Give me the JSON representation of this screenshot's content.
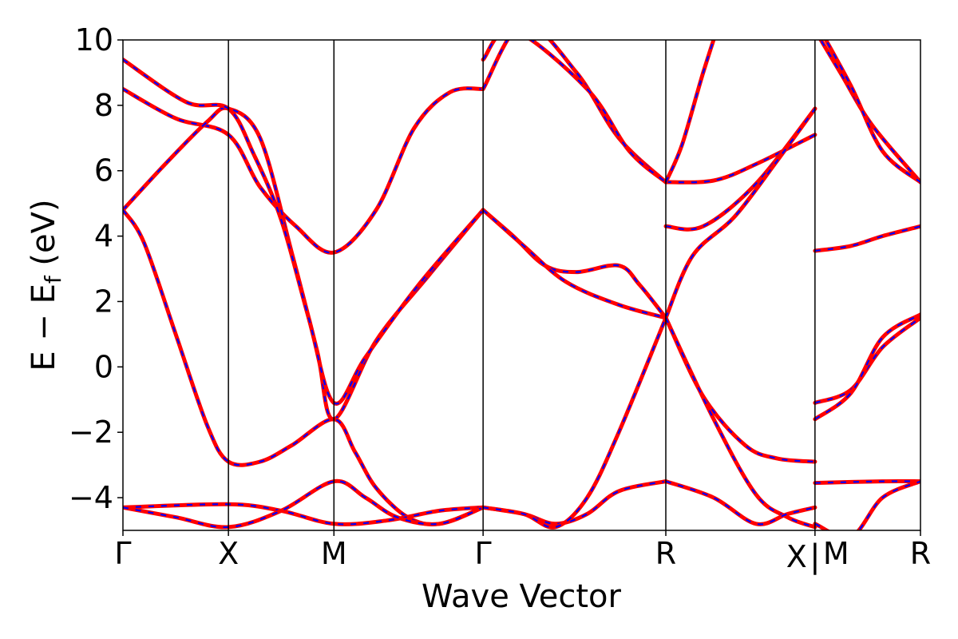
{
  "chart_data": {
    "type": "line",
    "title": "",
    "xlabel": "Wave Vector",
    "ylabel_main": "E − E",
    "ylabel_sub": "f",
    "ylabel_unit": " (eV)",
    "ylim": [
      -5,
      10
    ],
    "yticks": [
      {
        "value": 10,
        "label": "10"
      },
      {
        "value": 8,
        "label": "8"
      },
      {
        "value": 6,
        "label": "6"
      },
      {
        "value": 4,
        "label": "4"
      },
      {
        "value": 2,
        "label": "2"
      },
      {
        "value": 0,
        "label": "0"
      },
      {
        "value": -2,
        "label": "−2"
      },
      {
        "value": -4,
        "label": "−4"
      }
    ],
    "kpoints": [
      {
        "label": "Γ",
        "x": 0
      },
      {
        "label": "X",
        "x": 0.5
      },
      {
        "label": "M",
        "x": 1.0
      },
      {
        "label": "Γ",
        "x": 1.707
      },
      {
        "label": "R",
        "x": 2.573
      },
      {
        "label": "X",
        "x": 3.28
      },
      {
        "label": "M",
        "x": 3.28
      },
      {
        "label": "R",
        "x": 3.78
      }
    ],
    "path_break_label": "|",
    "grid": false,
    "legend": "none",
    "colors": {
      "solid": "#ff0000",
      "dashed": "#0000ff",
      "frame": "#000000"
    },
    "series": [
      {
        "points": [
          [
            0,
            8.5
          ],
          [
            0.25,
            7.6
          ],
          [
            0.5,
            7.1
          ],
          [
            0.65,
            5.5
          ],
          [
            0.82,
            4.3
          ],
          [
            1.0,
            3.5
          ],
          [
            1.2,
            4.8
          ],
          [
            1.38,
            7.3
          ],
          [
            1.55,
            8.4
          ],
          [
            1.707,
            8.5
          ]
        ]
      },
      {
        "points": [
          [
            0,
            4.8
          ],
          [
            0.2,
            6.2
          ],
          [
            0.4,
            7.5
          ],
          [
            0.5,
            7.9
          ],
          [
            0.65,
            7.0
          ],
          [
            0.8,
            3.5
          ],
          [
            0.92,
            0.5
          ],
          [
            1.0,
            -1.6
          ],
          [
            1.2,
            0.8
          ],
          [
            1.45,
            2.8
          ],
          [
            1.707,
            4.8
          ]
        ]
      },
      {
        "points": [
          [
            0,
            4.8
          ],
          [
            0.1,
            3.8
          ],
          [
            0.25,
            1.0
          ],
          [
            0.4,
            -1.8
          ],
          [
            0.5,
            -2.9
          ],
          [
            0.65,
            -2.9
          ],
          [
            0.8,
            -2.4
          ],
          [
            1.0,
            -1.6
          ],
          [
            1.1,
            -2.6
          ],
          [
            1.2,
            -3.7
          ],
          [
            1.35,
            -4.6
          ],
          [
            1.5,
            -4.8
          ],
          [
            1.707,
            -4.3
          ]
        ]
      },
      {
        "points": [
          [
            0,
            9.4
          ],
          [
            0.3,
            8.1
          ],
          [
            0.5,
            7.9
          ],
          [
            0.62,
            6.5
          ],
          [
            0.75,
            4.5
          ],
          [
            0.88,
            1.5
          ],
          [
            1.0,
            -1.1
          ],
          [
            1.15,
            0.3
          ],
          [
            1.4,
            2.5
          ],
          [
            1.707,
            4.8
          ]
        ]
      },
      {
        "points": [
          [
            0,
            -4.3
          ],
          [
            0.5,
            -4.2
          ],
          [
            0.75,
            -4.4
          ],
          [
            1.0,
            -4.8
          ],
          [
            1.25,
            -4.7
          ],
          [
            1.5,
            -4.4
          ],
          [
            1.707,
            -4.3
          ]
        ]
      },
      {
        "points": [
          [
            0,
            -4.3
          ],
          [
            0.25,
            -4.6
          ],
          [
            0.5,
            -4.9
          ],
          [
            0.75,
            -4.4
          ],
          [
            1.0,
            -3.5
          ],
          [
            1.15,
            -4.0
          ],
          [
            1.3,
            -4.6
          ],
          [
            1.5,
            -4.8
          ],
          [
            1.707,
            -4.3
          ]
        ]
      },
      {
        "points": [
          [
            1.707,
            4.8
          ],
          [
            1.85,
            4.0
          ],
          [
            2.0,
            3.1
          ],
          [
            2.15,
            2.9
          ],
          [
            2.35,
            3.1
          ],
          [
            2.45,
            2.5
          ],
          [
            2.573,
            1.5
          ]
        ]
      },
      {
        "points": [
          [
            1.707,
            4.8
          ],
          [
            1.9,
            3.7
          ],
          [
            2.1,
            2.6
          ],
          [
            2.35,
            1.9
          ],
          [
            2.573,
            1.5
          ]
        ]
      },
      {
        "points": [
          [
            1.707,
            -4.3
          ],
          [
            1.9,
            -4.5
          ],
          [
            2.05,
            -4.8
          ],
          [
            2.2,
            -4.5
          ],
          [
            2.35,
            -3.8
          ],
          [
            2.573,
            -3.5
          ]
        ]
      },
      {
        "points": [
          [
            1.707,
            -4.3
          ],
          [
            1.9,
            -4.5
          ],
          [
            2.05,
            -4.9
          ],
          [
            2.2,
            -4.0
          ],
          [
            2.35,
            -2.0
          ],
          [
            2.573,
            1.5
          ]
        ]
      },
      {
        "points": [
          [
            1.707,
            8.5
          ],
          [
            1.9,
            10.5
          ],
          [
            2.15,
            9.0
          ],
          [
            2.35,
            7.0
          ],
          [
            2.573,
            5.65
          ]
        ]
      },
      {
        "points": [
          [
            1.707,
            9.4
          ],
          [
            1.85,
            10.3
          ],
          [
            2.2,
            8.5
          ],
          [
            2.4,
            6.6
          ],
          [
            2.573,
            5.65
          ]
        ]
      },
      {
        "points": [
          [
            2.573,
            5.65
          ],
          [
            2.8,
            5.7
          ],
          [
            3.0,
            6.2
          ],
          [
            3.28,
            7.1
          ]
        ]
      },
      {
        "points": [
          [
            2.573,
            4.3
          ],
          [
            2.75,
            4.3
          ],
          [
            3.0,
            5.6
          ],
          [
            3.28,
            7.9
          ]
        ]
      },
      {
        "points": [
          [
            2.573,
            5.65
          ],
          [
            2.65,
            6.8
          ],
          [
            2.75,
            9.0
          ],
          [
            2.85,
            11.0
          ]
        ]
      },
      {
        "points": [
          [
            2.573,
            1.5
          ],
          [
            2.7,
            3.4
          ],
          [
            2.9,
            4.6
          ],
          [
            3.1,
            6.3
          ],
          [
            3.28,
            7.9
          ]
        ]
      },
      {
        "points": [
          [
            2.573,
            1.5
          ],
          [
            2.75,
            -0.9
          ],
          [
            2.95,
            -2.4
          ],
          [
            3.1,
            -2.8
          ],
          [
            3.28,
            -2.9
          ]
        ]
      },
      {
        "points": [
          [
            2.573,
            1.5
          ],
          [
            2.8,
            -1.6
          ],
          [
            3.0,
            -3.9
          ],
          [
            3.15,
            -4.6
          ],
          [
            3.28,
            -4.9
          ]
        ]
      },
      {
        "points": [
          [
            2.573,
            -3.5
          ],
          [
            2.8,
            -4.0
          ],
          [
            3.0,
            -4.8
          ],
          [
            3.15,
            -4.5
          ],
          [
            3.28,
            -4.3
          ]
        ]
      },
      {
        "points": [
          [
            3.28,
            3.55
          ],
          [
            3.45,
            3.7
          ],
          [
            3.6,
            4.0
          ],
          [
            3.78,
            4.3
          ]
        ]
      },
      {
        "points": [
          [
            3.28,
            -1.1
          ],
          [
            3.45,
            -0.7
          ],
          [
            3.6,
            0.6
          ],
          [
            3.78,
            1.5
          ]
        ]
      },
      {
        "points": [
          [
            3.28,
            -1.6
          ],
          [
            3.45,
            -0.8
          ],
          [
            3.6,
            0.9
          ],
          [
            3.78,
            1.6
          ]
        ]
      },
      {
        "points": [
          [
            3.28,
            -3.55
          ],
          [
            3.6,
            -3.5
          ],
          [
            3.78,
            -3.5
          ]
        ]
      },
      {
        "points": [
          [
            3.28,
            -4.8
          ],
          [
            3.45,
            -5.2
          ],
          [
            3.6,
            -4.0
          ],
          [
            3.78,
            -3.5
          ]
        ]
      },
      {
        "points": [
          [
            3.28,
            10.3
          ],
          [
            3.4,
            9.0
          ],
          [
            3.55,
            7.4
          ],
          [
            3.78,
            5.65
          ]
        ]
      },
      {
        "points": [
          [
            3.28,
            10.6
          ],
          [
            3.45,
            8.6
          ],
          [
            3.6,
            6.6
          ],
          [
            3.78,
            5.65
          ]
        ]
      }
    ]
  }
}
